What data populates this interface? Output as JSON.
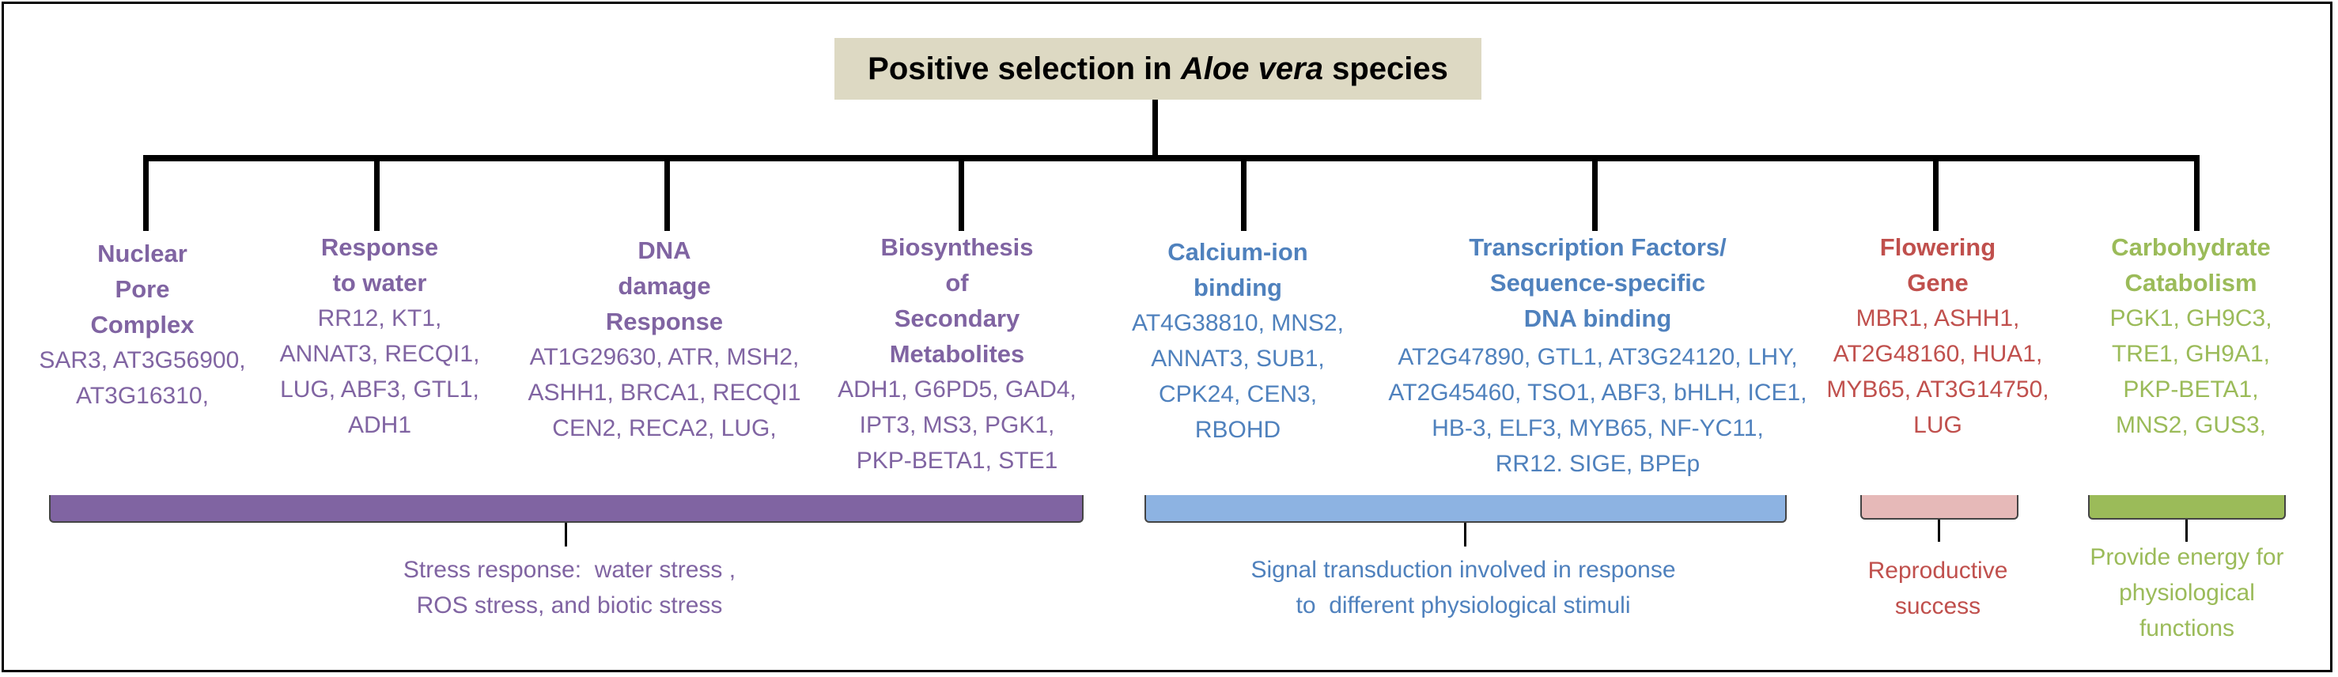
{
  "title": {
    "prefix": "Positive selection in ",
    "italic": "Aloe vera",
    "suffix": " species"
  },
  "colors": {
    "purple": "#8064a2",
    "blue": "#4f81bd",
    "red": "#c0504d",
    "green": "#9bbb59",
    "title_box": "#ddd9c3",
    "bracket_purple": "#8064a2",
    "bracket_blue": "#8db3e2",
    "bracket_red": "#e6b9b8",
    "bracket_green": "#9bbb59"
  },
  "categories": [
    {
      "heading": [
        "Nuclear",
        "Pore",
        "Complex"
      ],
      "genes": [
        "SAR3, AT3G56900,",
        "AT3G16310,"
      ],
      "color": "purple"
    },
    {
      "heading": [
        "Response",
        "to water"
      ],
      "genes": [
        "RR12, KT1,",
        "ANNAT3, RECQI1,",
        "LUG, ABF3, GTL1,",
        "ADH1"
      ],
      "color": "purple"
    },
    {
      "heading": [
        "DNA",
        "damage",
        "Response"
      ],
      "genes": [
        "AT1G29630, ATR, MSH2,",
        "ASHH1, BRCA1, RECQI1",
        "CEN2, RECA2, LUG,"
      ],
      "color": "purple"
    },
    {
      "heading": [
        "Biosynthesis",
        "of",
        "Secondary",
        "Metabolites"
      ],
      "genes": [
        "ADH1, G6PD5, GAD4,",
        "IPT3, MS3, PGK1,",
        "PKP-BETA1, STE1"
      ],
      "color": "purple"
    },
    {
      "heading": [
        "Calcium-ion",
        "binding"
      ],
      "genes": [
        "AT4G38810, MNS2,",
        "ANNAT3, SUB1,",
        "CPK24, CEN3,",
        "RBOHD"
      ],
      "color": "blue"
    },
    {
      "heading": [
        "Transcription Factors/",
        "Sequence-specific",
        "DNA binding"
      ],
      "genes": [
        "AT2G47890, GTL1, AT3G24120, LHY,",
        "AT2G45460, TSO1, ABF3, bHLH, ICE1,",
        "HB-3, ELF3, MYB65, NF-YC11,",
        "RR12. SIGE, BPEp"
      ],
      "color": "blue"
    },
    {
      "heading": [
        "Flowering",
        "Gene"
      ],
      "genes": [
        "MBR1, ASHH1,",
        "AT2G48160, HUA1,",
        "MYB65, AT3G14750,",
        "LUG"
      ],
      "color": "red"
    },
    {
      "heading": [
        "Carbohydrate",
        "Catabolism"
      ],
      "genes": [
        "PGK1, GH9C3,",
        "TRE1, GH9A1,",
        "PKP-BETA1,",
        "MNS2, GUS3,"
      ],
      "color": "green"
    }
  ],
  "summaries": [
    {
      "lines": [
        "Stress response:  water stress ,",
        "ROS stress, and biotic stress"
      ],
      "color": "purple"
    },
    {
      "lines": [
        "Signal transduction involved in response",
        "to  different physiological stimuli"
      ],
      "color": "blue"
    },
    {
      "lines": [
        "Reproductive",
        "success"
      ],
      "color": "red"
    },
    {
      "lines": [
        "Provide energy for",
        "physiological",
        "functions"
      ],
      "color": "green"
    }
  ]
}
